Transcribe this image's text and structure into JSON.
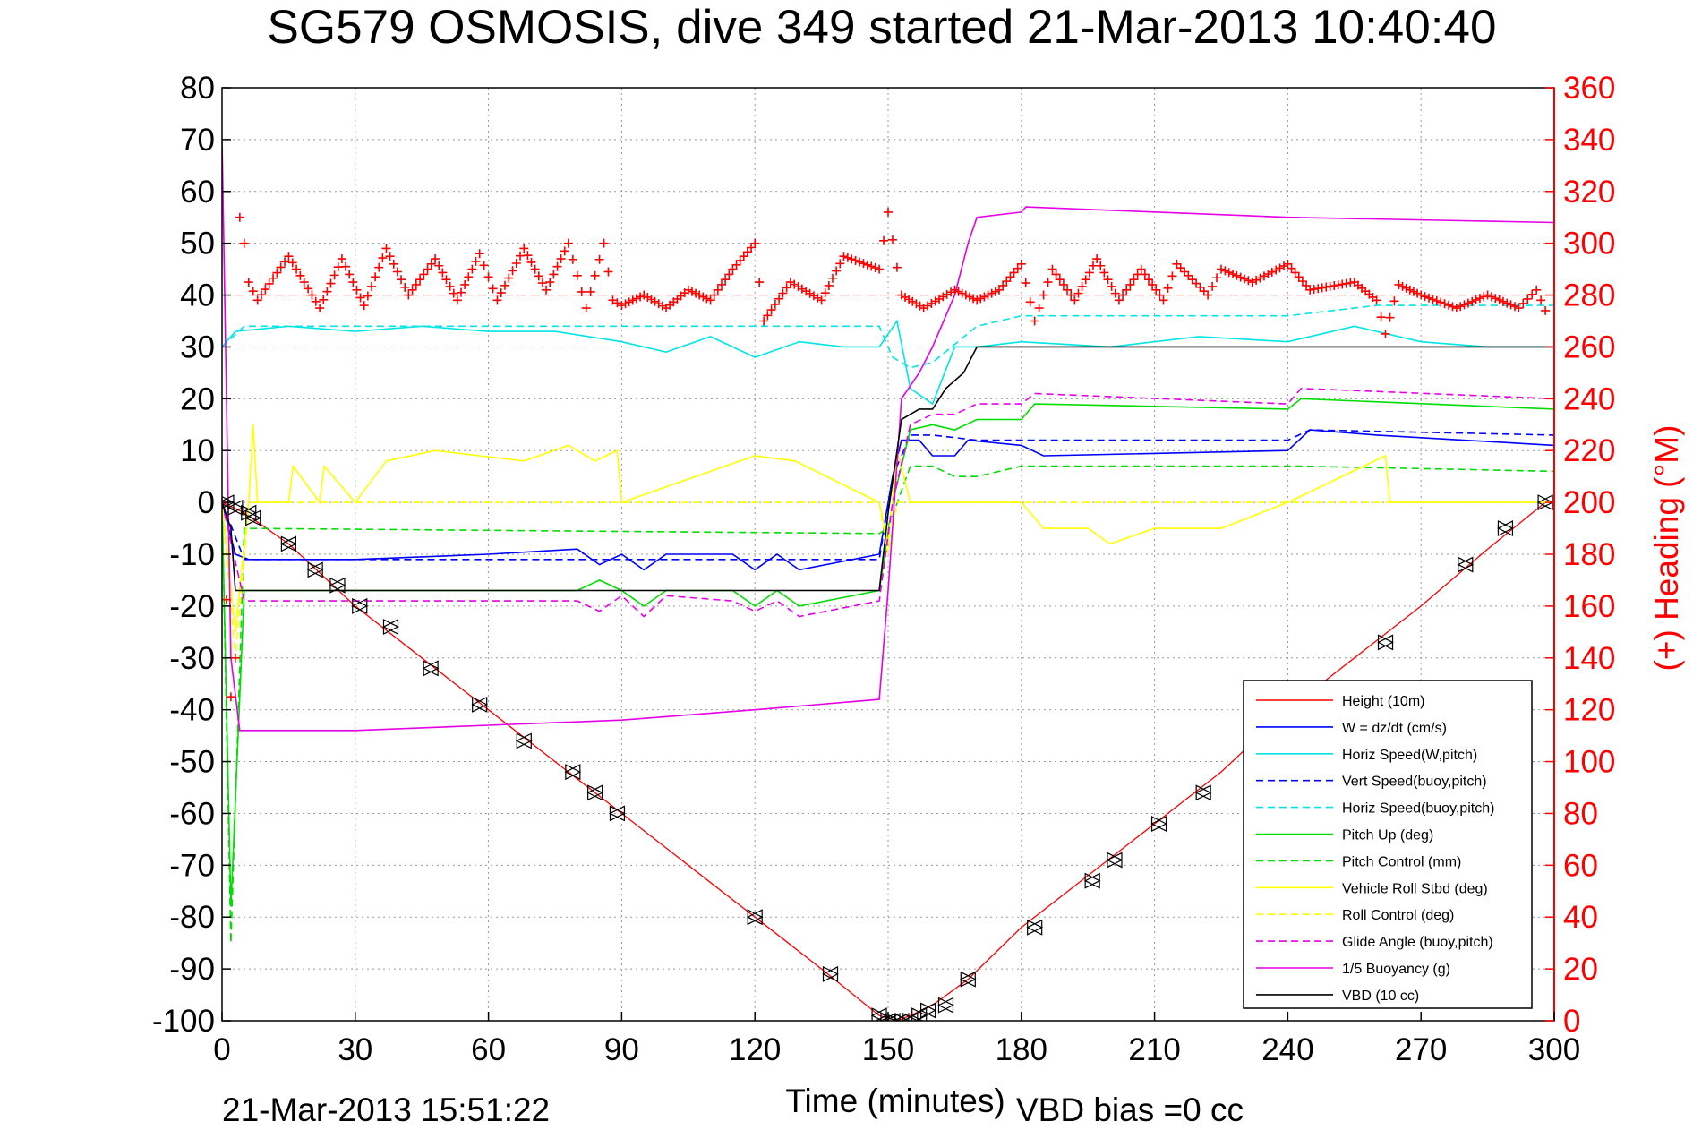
{
  "chart_data": {
    "type": "line",
    "title": "SG579 OSMOSIS, dive 349 started 21-Mar-2013 10:40:40",
    "xlabel": "Time (minutes)",
    "ylabel": "",
    "ylabel_right": "(+) Heading (°M)",
    "xlim": [
      0,
      300
    ],
    "ylim": [
      -100,
      80
    ],
    "ylim_right": [
      0,
      360
    ],
    "xticks": [
      "0",
      "30",
      "60",
      "90",
      "120",
      "150",
      "180",
      "210",
      "240",
      "270",
      "300"
    ],
    "yticks": [
      "80",
      "70",
      "60",
      "50",
      "40",
      "30",
      "20",
      "10",
      "0",
      "-10",
      "-20",
      "-30",
      "-40",
      "-50",
      "-60",
      "-70",
      "-80",
      "-90",
      "-100"
    ],
    "yticks_right": [
      "360",
      "340",
      "320",
      "300",
      "280",
      "260",
      "240",
      "220",
      "200",
      "180",
      "160",
      "140",
      "120",
      "100",
      "80",
      "60",
      "40",
      "20",
      "0"
    ],
    "grid": true,
    "legend_position": "bottom-right",
    "footer_left": "21-Mar-2013 15:51:22",
    "footer_right": "VBD bias =0 cc",
    "series": [
      {
        "name": "Height (10m)",
        "color": "#ff0000",
        "style": "solid",
        "x": [
          0,
          5,
          15,
          30,
          45,
          60,
          75,
          90,
          105,
          120,
          135,
          148,
          152,
          155,
          160,
          168,
          180,
          195,
          210,
          225,
          240,
          255,
          270,
          285,
          298
        ],
        "values": [
          0,
          -2,
          -8,
          -20,
          -30,
          -40,
          -50,
          -60,
          -70,
          -80,
          -90,
          -99,
          -100,
          -99,
          -97,
          -92,
          -82,
          -72,
          -62,
          -52,
          -40,
          -30,
          -20,
          -9,
          0
        ]
      },
      {
        "name": "W = dz/dt (cm/s)",
        "color": "#0000ff",
        "style": "solid",
        "x": [
          0,
          3,
          6,
          30,
          60,
          80,
          85,
          90,
          95,
          100,
          115,
          120,
          125,
          130,
          148,
          151,
          153,
          157,
          160,
          165,
          168,
          180,
          185,
          240,
          245,
          260,
          300
        ],
        "values": [
          0,
          -10,
          -11,
          -11,
          -10,
          -9,
          -12,
          -10,
          -13,
          -10,
          -10,
          -13,
          -10,
          -13,
          -10,
          5,
          12,
          12,
          9,
          9,
          12,
          11,
          9,
          10,
          14,
          13,
          11
        ]
      },
      {
        "name": "Horiz Speed(W,pitch)",
        "color": "#00e5e5",
        "style": "solid",
        "x": [
          0,
          3,
          15,
          30,
          45,
          60,
          75,
          90,
          100,
          110,
          120,
          130,
          140,
          148,
          152,
          155,
          160,
          165,
          170,
          180,
          200,
          220,
          240,
          255,
          270,
          285,
          299
        ],
        "values": [
          30,
          33,
          34,
          33,
          34,
          33,
          33,
          31,
          29,
          32,
          28,
          31,
          30,
          30,
          35,
          22,
          19,
          30,
          30,
          31,
          30,
          32,
          31,
          34,
          31,
          30,
          30
        ]
      },
      {
        "name": "Vert Speed(buoy,pitch)",
        "color": "#0000ff",
        "style": "dashed",
        "x": [
          0,
          5,
          148,
          151,
          155,
          160,
          170,
          180,
          240,
          245,
          300
        ],
        "values": [
          0,
          -11,
          -11,
          5,
          13,
          13,
          12,
          12,
          12,
          14,
          13
        ]
      },
      {
        "name": "Horiz Speed(buoy,pitch)",
        "color": "#00e5e5",
        "style": "dashed",
        "x": [
          0,
          5,
          148,
          151,
          155,
          160,
          170,
          180,
          240,
          260,
          300
        ],
        "values": [
          30,
          34,
          34,
          28,
          26,
          27,
          34,
          36,
          36,
          38,
          38
        ]
      },
      {
        "name": "Pitch Up (deg)",
        "color": "#00dd00",
        "style": "solid",
        "x": [
          0,
          2,
          5,
          80,
          85,
          90,
          95,
          100,
          115,
          120,
          125,
          130,
          148,
          151,
          155,
          160,
          165,
          170,
          180,
          183,
          240,
          243,
          300
        ],
        "values": [
          0,
          -78,
          -17,
          -17,
          -15,
          -17,
          -20,
          -17,
          -17,
          -20,
          -17,
          -20,
          -17,
          0,
          14,
          15,
          14,
          16,
          16,
          19,
          18,
          20,
          18
        ]
      },
      {
        "name": "Pitch Control (mm)",
        "color": "#00dd00",
        "style": "dashed",
        "x": [
          0,
          2,
          5,
          148,
          150,
          155,
          160,
          165,
          170,
          180,
          240,
          243,
          300
        ],
        "values": [
          0,
          -85,
          -5,
          -6,
          -5,
          7,
          7,
          5,
          5,
          7,
          7,
          7,
          6
        ]
      },
      {
        "name": "Vehicle Roll Stbd (deg)",
        "color": "#ffff00",
        "style": "solid",
        "x": [
          0,
          3,
          6,
          7,
          8,
          15,
          16,
          22,
          23,
          30,
          37,
          48,
          58,
          68,
          78,
          84,
          89,
          90,
          120,
          129,
          148,
          150,
          152,
          155,
          180,
          185,
          195,
          200,
          210,
          225,
          240,
          262,
          263,
          300
        ],
        "values": [
          0,
          -25,
          0,
          15,
          0,
          0,
          7,
          0,
          7,
          0,
          8,
          10,
          9,
          8,
          11,
          8,
          10,
          0,
          9,
          8,
          0,
          -8,
          10,
          0,
          0,
          -5,
          -5,
          -8,
          -5,
          -5,
          0,
          9,
          0,
          0
        ]
      },
      {
        "name": "Roll Control (deg)",
        "color": "#ffff00",
        "style": "dashed",
        "x": [
          0,
          3,
          6,
          148,
          150,
          152,
          300
        ],
        "values": [
          0,
          -30,
          0,
          0,
          -10,
          0,
          0
        ]
      },
      {
        "name": "Glide Angle (buoy,pitch)",
        "color": "#e600e6",
        "style": "dashed",
        "x": [
          0,
          5,
          80,
          85,
          90,
          95,
          100,
          115,
          120,
          125,
          130,
          148,
          151,
          155,
          160,
          165,
          170,
          180,
          183,
          240,
          243,
          300
        ],
        "values": [
          0,
          -19,
          -19,
          -21,
          -18,
          -22,
          -18,
          -19,
          -21,
          -19,
          -22,
          -19,
          0,
          15,
          17,
          17,
          19,
          19,
          21,
          19,
          22,
          20
        ]
      },
      {
        "name": "1/5 Buoyancy (g)",
        "color": "#e600e6",
        "style": "solid",
        "x": [
          0,
          2,
          4,
          30,
          60,
          90,
          120,
          148,
          150,
          153,
          157,
          160,
          165,
          168,
          170,
          180,
          181,
          240,
          300
        ],
        "values": [
          70,
          -30,
          -44,
          -44,
          -43,
          -42,
          -40,
          -38,
          -17,
          20,
          25,
          30,
          40,
          50,
          55,
          56,
          57,
          55,
          54
        ]
      },
      {
        "name": "VBD (10 cc)",
        "color": "#000000",
        "style": "solid",
        "x": [
          0,
          2,
          3,
          148,
          150,
          153,
          157,
          160,
          163,
          167,
          170,
          180,
          300
        ],
        "values": [
          0,
          -5,
          -17,
          -17,
          -2,
          16,
          18,
          18,
          22,
          25,
          30,
          30,
          30
        ]
      }
    ],
    "heading": {
      "name": "(+) Heading",
      "color": "#ff0000",
      "marker": "+",
      "target": 280,
      "x": [
        0,
        2,
        3,
        4,
        5,
        6,
        8,
        15,
        22,
        27,
        32,
        37,
        42,
        48,
        53,
        58,
        62,
        68,
        73,
        78,
        82,
        86,
        88,
        90,
        95,
        100,
        105,
        110,
        115,
        120,
        122,
        128,
        135,
        140,
        148,
        150,
        153,
        158,
        165,
        170,
        175,
        180,
        183,
        187,
        192,
        197,
        202,
        207,
        212,
        215,
        222,
        225,
        232,
        240,
        245,
        255,
        260,
        262,
        265,
        270,
        278,
        285,
        292,
        296,
        299
      ],
      "values": [
        200,
        125,
        140,
        310,
        300,
        285,
        278,
        295,
        275,
        294,
        276,
        298,
        280,
        294,
        278,
        296,
        278,
        298,
        282,
        300,
        275,
        300,
        278,
        276,
        280,
        275,
        282,
        278,
        290,
        300,
        270,
        285,
        278,
        295,
        290,
        312,
        280,
        275,
        282,
        278,
        282,
        292,
        270,
        290,
        278,
        294,
        278,
        290,
        278,
        292,
        280,
        290,
        285,
        292,
        282,
        285,
        278,
        265,
        284,
        280,
        275,
        280,
        275,
        282,
        270
      ]
    },
    "markers": {
      "x": [
        1,
        3,
        6,
        7,
        15,
        21,
        26,
        31,
        38,
        47,
        58,
        68,
        79,
        84,
        89,
        120,
        137,
        148,
        150,
        151,
        153,
        155,
        157,
        159,
        163,
        168,
        183,
        196,
        201,
        211,
        221,
        262,
        280,
        289,
        298
      ],
      "values": [
        0,
        -1,
        -2,
        -3,
        -8,
        -13,
        -16,
        -20,
        -24,
        -32,
        -39,
        -46,
        -52,
        -56,
        -60,
        -80,
        -91,
        -99,
        -100,
        -100,
        -100,
        -100,
        -99,
        -98,
        -97,
        -92,
        -82,
        -73,
        -69,
        -62,
        -56,
        -27,
        -12,
        -5,
        0
      ]
    }
  }
}
